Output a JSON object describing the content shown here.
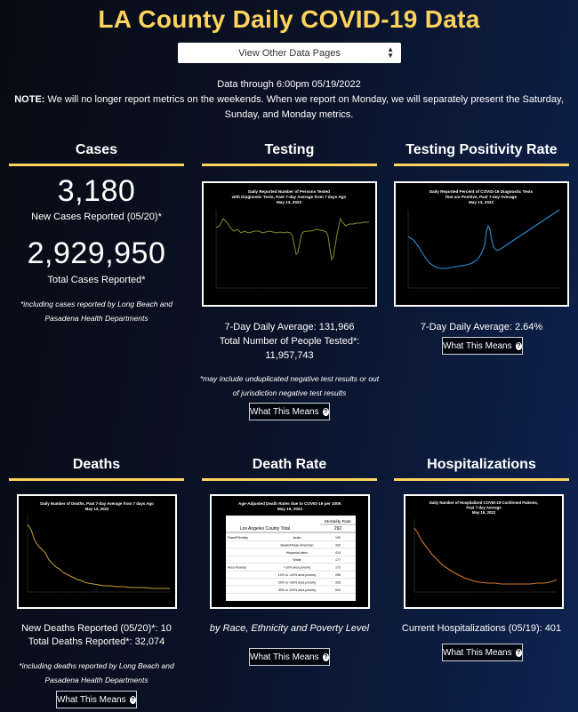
{
  "header": {
    "title": "LA County Daily COVID-19 Data",
    "select_label": "View Other Data Pages",
    "data_through": "Data through 6:00pm 05/19/2022",
    "note_label": "NOTE:",
    "note_text": "We will no longer report metrics on the weekends. When we report on Monday, we will separately present the Saturday, Sunday, and Monday metrics."
  },
  "colors": {
    "accent": "#ffd35c",
    "testing_line": "#7e8f2c",
    "positivity_line": "#2f8fd6",
    "deaths_line": "#c9a22f",
    "hosp_line": "#d0782a"
  },
  "cases": {
    "title": "Cases",
    "new_cases": "3,180",
    "new_cases_label": "New Cases Reported (05/20)*",
    "total_cases": "2,929,950",
    "total_cases_label": "Total Cases Reported*",
    "footnote": "*including cases reported by Long Beach and Pasadena Health Departments"
  },
  "testing": {
    "title": "Testing",
    "chart_title": "Daily Reported Number of Persons Tested with Diagnostic Tests, Past 7-day Average from 7 days Ago",
    "chart_date": "May 13, 2022",
    "avg": "7-Day Daily Average: 131,966",
    "total": "Total Number of People Tested*: 11,957,743",
    "footnote": "*may include unduplicated negative test results or out of jurisdiction negative test results",
    "button": "What This Means"
  },
  "positivity": {
    "title": "Testing Positivity Rate",
    "chart_title": "Daily Reported Percent of COVID-19 Diagnostic Tests that are Positive, Past 7-day Average",
    "chart_date": "May 13, 2022",
    "avg": "7-Day Daily Average: 2.64%",
    "button": "What This Means"
  },
  "deaths": {
    "title": "Deaths",
    "chart_title": "Daily Number of Deaths, Past 7-day Average from 7 days Ago",
    "chart_date": "May 13, 2022",
    "new": "New Deaths Reported (05/20)*: 10",
    "total": "Total Deaths Reported*: 32,074",
    "footnote": "*including deaths reported by Long Beach and Pasadena Health Departments",
    "button": "What This Means"
  },
  "death_rate": {
    "title": "Death Rate",
    "chart_title": "Age-Adjusted Death Rates due to COVID-19 per 100K",
    "chart_date": "May 19, 2022",
    "column_header": "Mortality Rate",
    "total_label": "Los Angeles County Total",
    "total_value": "292",
    "rows": [
      {
        "group": "Race/Ethnicity",
        "label": "Asian",
        "value": "199"
      },
      {
        "group": "",
        "label": "Black/African American",
        "value": "332"
      },
      {
        "group": "",
        "label": "Hispanic/Latino",
        "value": "414"
      },
      {
        "group": "",
        "label": "White",
        "value": "177"
      },
      {
        "group": "Area Poverty",
        "label": "<10% area poverty",
        "value": "172"
      },
      {
        "group": "",
        "label": "10% to <20% area poverty",
        "value": "255"
      },
      {
        "group": "",
        "label": "20% to <30% area poverty",
        "value": "335"
      },
      {
        "group": "",
        "label": "30% to 100% area poverty",
        "value": "534"
      }
    ],
    "caption": "by Race, Ethnicity and Poverty Level",
    "button": "What This Means"
  },
  "hospitalizations": {
    "title": "Hospitalizations",
    "chart_title": "Daily Number of Hospitalized COVID-19 Confirmed Patients, Past 7-day Average",
    "chart_date": "May 19, 2022",
    "current": "Current Hospitalizations (05/19): 401",
    "button": "What This Means"
  }
}
